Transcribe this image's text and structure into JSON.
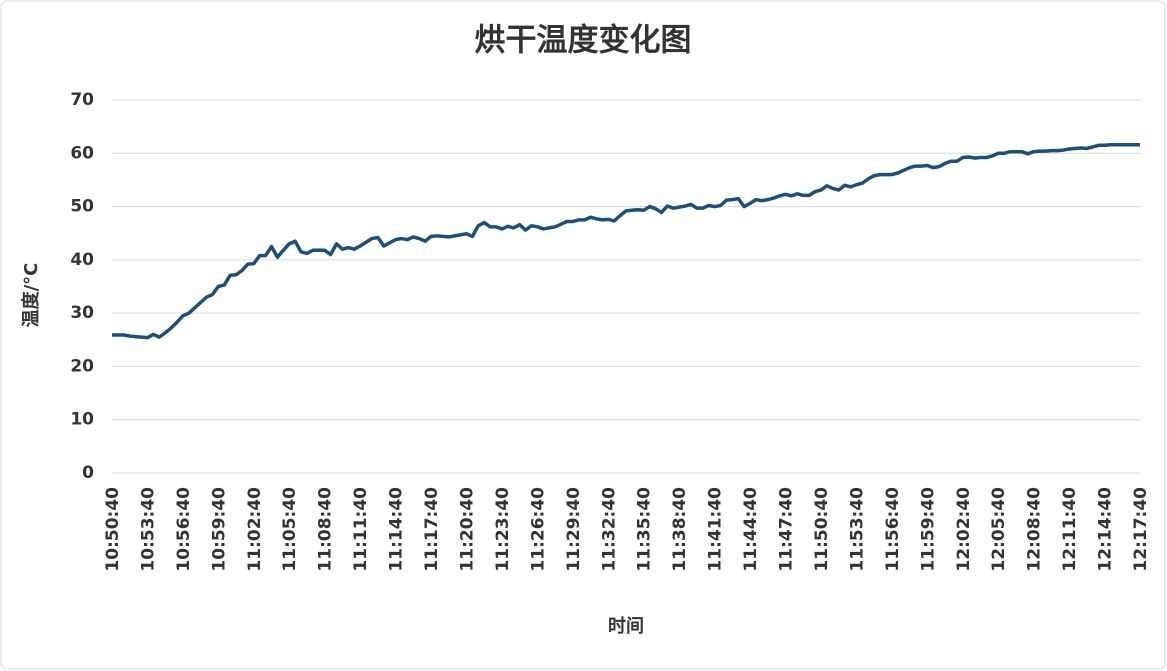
{
  "chart_data": {
    "type": "line",
    "title": "烘干温度变化图",
    "x_label": "时间",
    "y_label": "温度/°C",
    "categories": [
      "10:50:40",
      null,
      null,
      null,
      null,
      null,
      "10:53:40",
      null,
      null,
      null,
      null,
      null,
      "10:56:40",
      null,
      null,
      null,
      null,
      null,
      "10:59:40",
      null,
      null,
      null,
      null,
      null,
      "11:02:40",
      null,
      null,
      null,
      null,
      null,
      "11:05:40",
      null,
      null,
      null,
      null,
      null,
      "11:08:40",
      null,
      null,
      null,
      null,
      null,
      "11:11:40",
      null,
      null,
      null,
      null,
      null,
      "11:14:40",
      null,
      null,
      null,
      null,
      null,
      "11:17:40",
      null,
      null,
      null,
      null,
      null,
      "11:20:40",
      null,
      null,
      null,
      null,
      null,
      "11:23:40",
      null,
      null,
      null,
      null,
      null,
      "11:26:40",
      null,
      null,
      null,
      null,
      null,
      "11:29:40",
      null,
      null,
      null,
      null,
      null,
      "11:32:40",
      null,
      null,
      null,
      null,
      null,
      "11:35:40",
      null,
      null,
      null,
      null,
      null,
      "11:38:40",
      null,
      null,
      null,
      null,
      null,
      "11:41:40",
      null,
      null,
      null,
      null,
      null,
      "11:44:40",
      null,
      null,
      null,
      null,
      null,
      "11:47:40",
      null,
      null,
      null,
      null,
      null,
      "11:50:40",
      null,
      null,
      null,
      null,
      null,
      "11:53:40",
      null,
      null,
      null,
      null,
      null,
      "11:56:40",
      null,
      null,
      null,
      null,
      null,
      "11:59:40",
      null,
      null,
      null,
      null,
      null,
      "12:02:40",
      null,
      null,
      null,
      null,
      null,
      "12:05:40",
      null,
      null,
      null,
      null,
      null,
      "12:08:40",
      null,
      null,
      null,
      null,
      null,
      "12:11:40",
      null,
      null,
      null,
      null,
      null,
      "12:14:40",
      null,
      null,
      null,
      null,
      null,
      "12:17:40"
    ],
    "series": [
      {
        "name": "温度",
        "color": "#1f4e79",
        "values": [
          25.9,
          25.9,
          25.9,
          25.7,
          25.6,
          25.5,
          25.4,
          26.0,
          25.5,
          26.3,
          27.2,
          28.3,
          29.5,
          30.0,
          31.0,
          32.0,
          33.0,
          33.5,
          35.0,
          35.3,
          37.1,
          37.2,
          38.0,
          39.2,
          39.3,
          40.8,
          40.8,
          42.5,
          40.5,
          41.8,
          43.0,
          43.5,
          41.5,
          41.2,
          41.8,
          41.8,
          41.8,
          41.0,
          43.0,
          42.0,
          42.3,
          42.0,
          42.6,
          43.3,
          44.0,
          44.2,
          42.6,
          43.2,
          43.8,
          44.0,
          43.8,
          44.3,
          44.0,
          43.5,
          44.4,
          44.5,
          44.4,
          44.3,
          44.5,
          44.7,
          44.9,
          44.4,
          46.4,
          47.0,
          46.2,
          46.2,
          45.8,
          46.3,
          46.0,
          46.6,
          45.6,
          46.4,
          46.2,
          45.8,
          46.0,
          46.2,
          46.7,
          47.2,
          47.2,
          47.5,
          47.5,
          48.0,
          47.7,
          47.5,
          47.6,
          47.3,
          48.3,
          49.2,
          49.3,
          49.4,
          49.3,
          50.0,
          49.6,
          48.9,
          50.1,
          49.7,
          49.9,
          50.1,
          50.4,
          49.7,
          49.7,
          50.2,
          50.0,
          50.2,
          51.2,
          51.3,
          51.5,
          50.0,
          50.6,
          51.3,
          51.1,
          51.3,
          51.6,
          52.0,
          52.3,
          52.0,
          52.4,
          52.1,
          52.1,
          52.8,
          53.1,
          53.9,
          53.4,
          53.1,
          54.0,
          53.7,
          54.1,
          54.4,
          55.2,
          55.8,
          56.0,
          56.0,
          56.0,
          56.3,
          56.8,
          57.3,
          57.6,
          57.6,
          57.7,
          57.3,
          57.5,
          58.1,
          58.5,
          58.5,
          59.2,
          59.3,
          59.1,
          59.2,
          59.2,
          59.5,
          60.0,
          60.0,
          60.3,
          60.3,
          60.3,
          59.9,
          60.3,
          60.4,
          60.4,
          60.5,
          60.5,
          60.6,
          60.8,
          60.9,
          61.0,
          60.9,
          61.2,
          61.5,
          61.5,
          61.6,
          61.6,
          61.6,
          61.6,
          61.6,
          61.6
        ]
      }
    ],
    "ylim": [
      0,
      70
    ],
    "yticks": [
      0,
      10,
      20,
      30,
      40,
      50,
      60,
      70
    ],
    "grid": true
  }
}
